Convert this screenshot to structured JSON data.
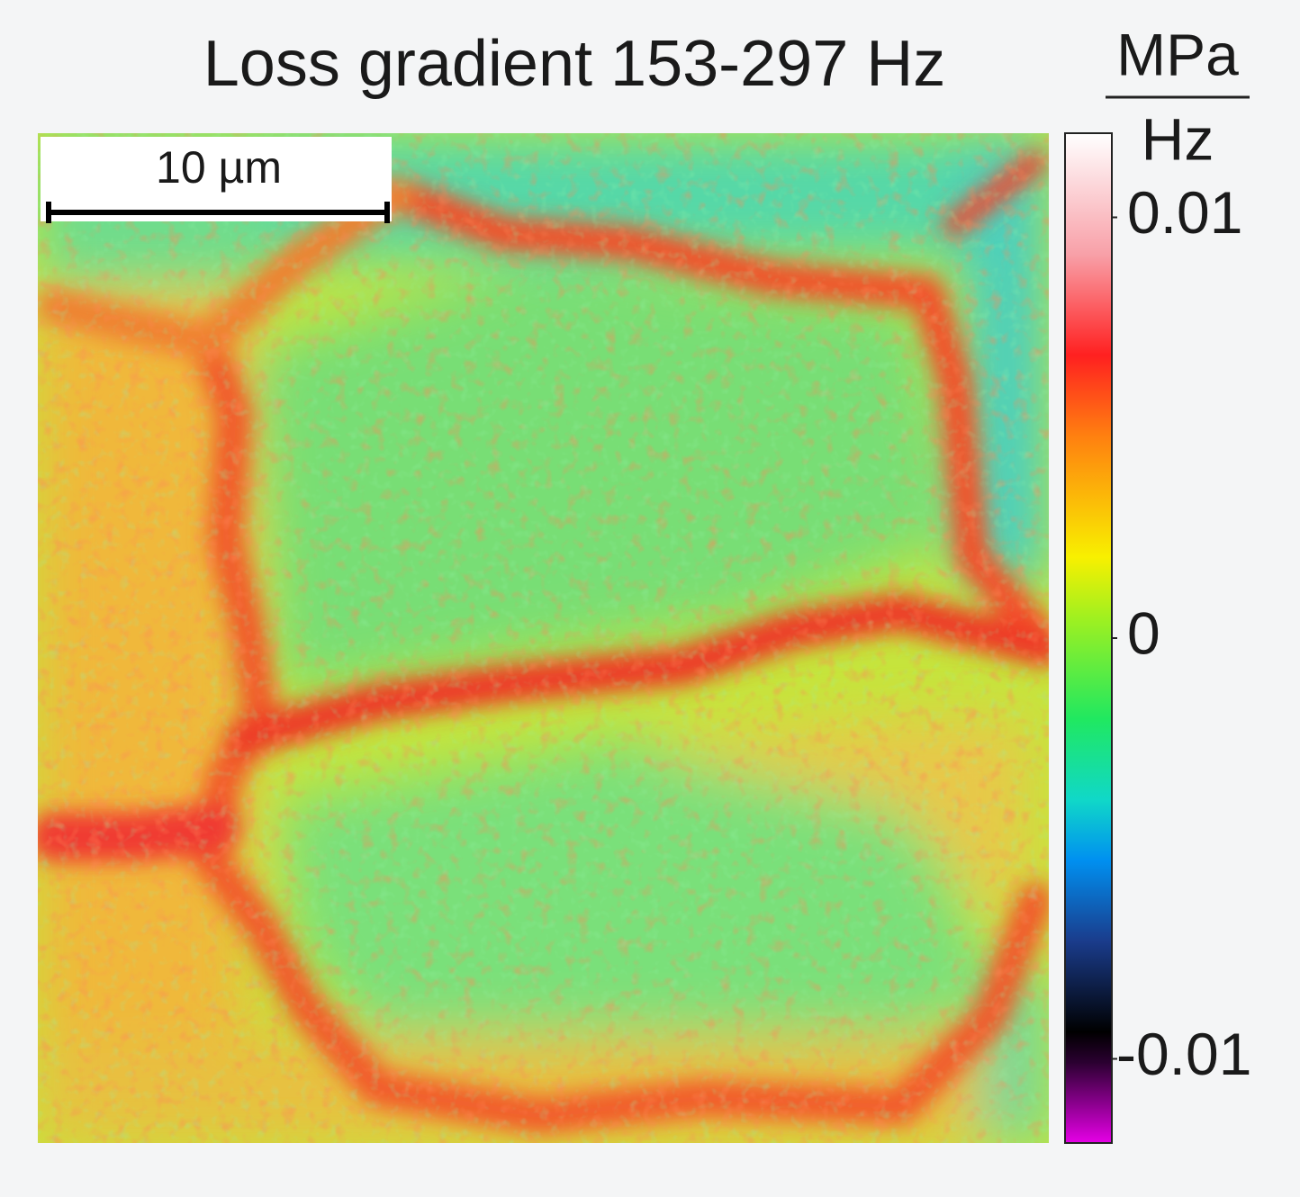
{
  "title": "Loss gradient 153-297 Hz",
  "unit": {
    "numerator": "MPa",
    "denominator": "Hz"
  },
  "scale_bar": {
    "label": "10 µm"
  },
  "colorbar": {
    "lim": [
      -0.012,
      0.012
    ],
    "ticks": [
      -0.01,
      0,
      0.01
    ]
  }
}
